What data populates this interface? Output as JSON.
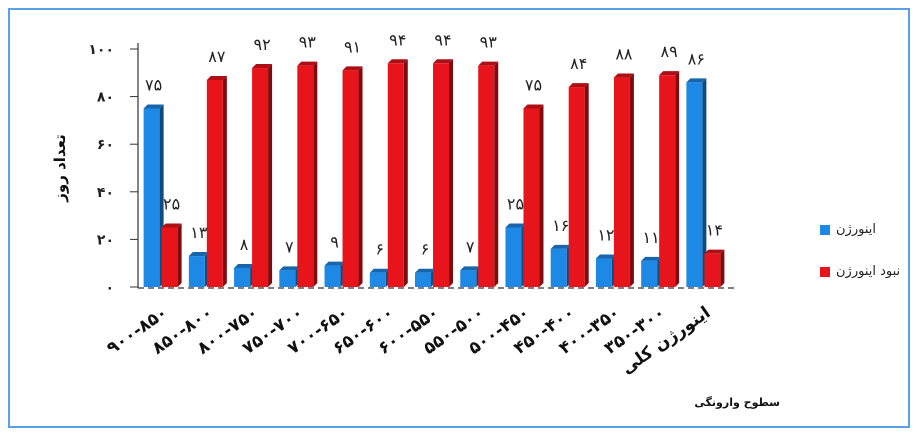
{
  "chart_data": {
    "type": "bar",
    "ylabel": "تعداد روز",
    "xlabel": "سطوح وارونگی",
    "ylim": [
      0,
      100
    ],
    "yticks": [
      "۰",
      "۲۰",
      "۴۰",
      "۶۰",
      "۸۰",
      "۱۰۰"
    ],
    "categories": [
      "۹۰۰-۸۵۰",
      "۸۵۰-۸۰۰",
      "۸۰۰-۷۵۰",
      "۷۵۰-۷۰۰",
      "۷۰۰-۶۵۰",
      "۶۵۰-۶۰۰",
      "۶۰۰-۵۵۰",
      "۵۵۰-۵۰۰",
      "۵۰۰-۴۵۰",
      "۴۵۰-۴۰۰",
      "۴۰۰-۳۵۰",
      "۳۵۰-۳۰۰",
      "اینورژن کلی"
    ],
    "series": [
      {
        "name": "اینورژن",
        "color": "#1e88e5",
        "values": [
          75,
          13,
          8,
          7,
          9,
          6,
          6,
          7,
          25,
          16,
          12,
          11,
          86
        ],
        "labels": [
          "۷۵",
          "۱۳",
          "۸",
          "۷",
          "۹",
          "۶",
          "۶",
          "۷",
          "۲۵",
          "۱۶",
          "۱۲",
          "۱۱",
          "۸۶"
        ]
      },
      {
        "name": "نبود اینورژن",
        "color": "#e8141c",
        "values": [
          25,
          87,
          92,
          93,
          91,
          94,
          94,
          93,
          75,
          84,
          88,
          89,
          14
        ],
        "labels": [
          "۲۵",
          "۸۷",
          "۹۲",
          "۹۳",
          "۹۱",
          "۹۴",
          "۹۴",
          "۹۳",
          "۷۵",
          "۸۴",
          "۸۸",
          "۸۹",
          "۱۴"
        ]
      }
    ],
    "legend_position": "right"
  }
}
